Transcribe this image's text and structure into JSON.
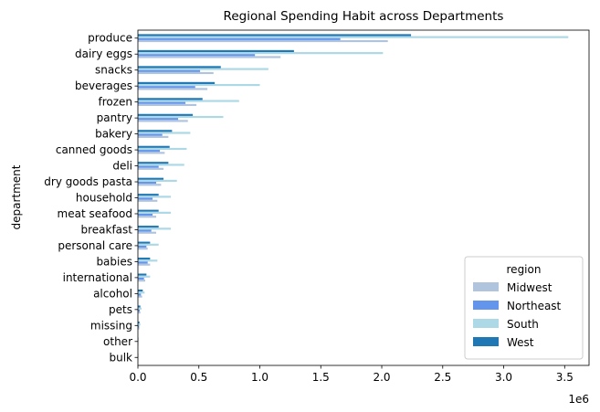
{
  "chart_data": {
    "type": "bar",
    "orientation": "horizontal",
    "title": "Regional Spending Habit across Departments",
    "xlabel": "",
    "ylabel": "department",
    "x_scale_label": "1e6",
    "xlim": [
      0,
      3.7
    ],
    "x_ticks": [
      "0.0",
      "0.5",
      "1.0",
      "1.5",
      "2.0",
      "2.5",
      "3.0",
      "3.5"
    ],
    "x_tick_values": [
      0,
      0.5,
      1.0,
      1.5,
      2.0,
      2.5,
      3.0,
      3.5
    ],
    "grid": false,
    "legend": {
      "title": "region",
      "placement": "bottom-right"
    },
    "categories": [
      "produce",
      "dairy eggs",
      "snacks",
      "beverages",
      "frozen",
      "pantry",
      "bakery",
      "canned goods",
      "deli",
      "dry goods pasta",
      "household",
      "meat seafood",
      "breakfast",
      "personal care",
      "babies",
      "international",
      "alcohol",
      "pets",
      "missing",
      "other",
      "bulk"
    ],
    "series": [
      {
        "name": "Midwest",
        "color": "#b0c4de",
        "values": [
          2.05,
          1.17,
          0.62,
          0.57,
          0.48,
          0.41,
          0.25,
          0.22,
          0.21,
          0.19,
          0.16,
          0.15,
          0.15,
          0.08,
          0.1,
          0.06,
          0.035,
          0.02,
          0.012,
          0.004,
          0.003
        ]
      },
      {
        "name": "Northeast",
        "color": "#6495ed",
        "values": [
          1.66,
          0.96,
          0.51,
          0.47,
          0.39,
          0.33,
          0.2,
          0.18,
          0.17,
          0.15,
          0.12,
          0.12,
          0.11,
          0.07,
          0.08,
          0.05,
          0.025,
          0.015,
          0.01,
          0.003,
          0.002
        ]
      },
      {
        "name": "South",
        "color": "#add8e6",
        "values": [
          3.53,
          2.01,
          1.07,
          1.0,
          0.83,
          0.7,
          0.43,
          0.4,
          0.38,
          0.32,
          0.27,
          0.27,
          0.27,
          0.17,
          0.16,
          0.1,
          0.055,
          0.03,
          0.02,
          0.006,
          0.005
        ]
      },
      {
        "name": "West",
        "color": "#1f77b4",
        "values": [
          2.24,
          1.28,
          0.68,
          0.63,
          0.53,
          0.45,
          0.28,
          0.26,
          0.25,
          0.21,
          0.17,
          0.17,
          0.17,
          0.1,
          0.1,
          0.07,
          0.04,
          0.02,
          0.013,
          0.004,
          0.003
        ]
      }
    ]
  }
}
